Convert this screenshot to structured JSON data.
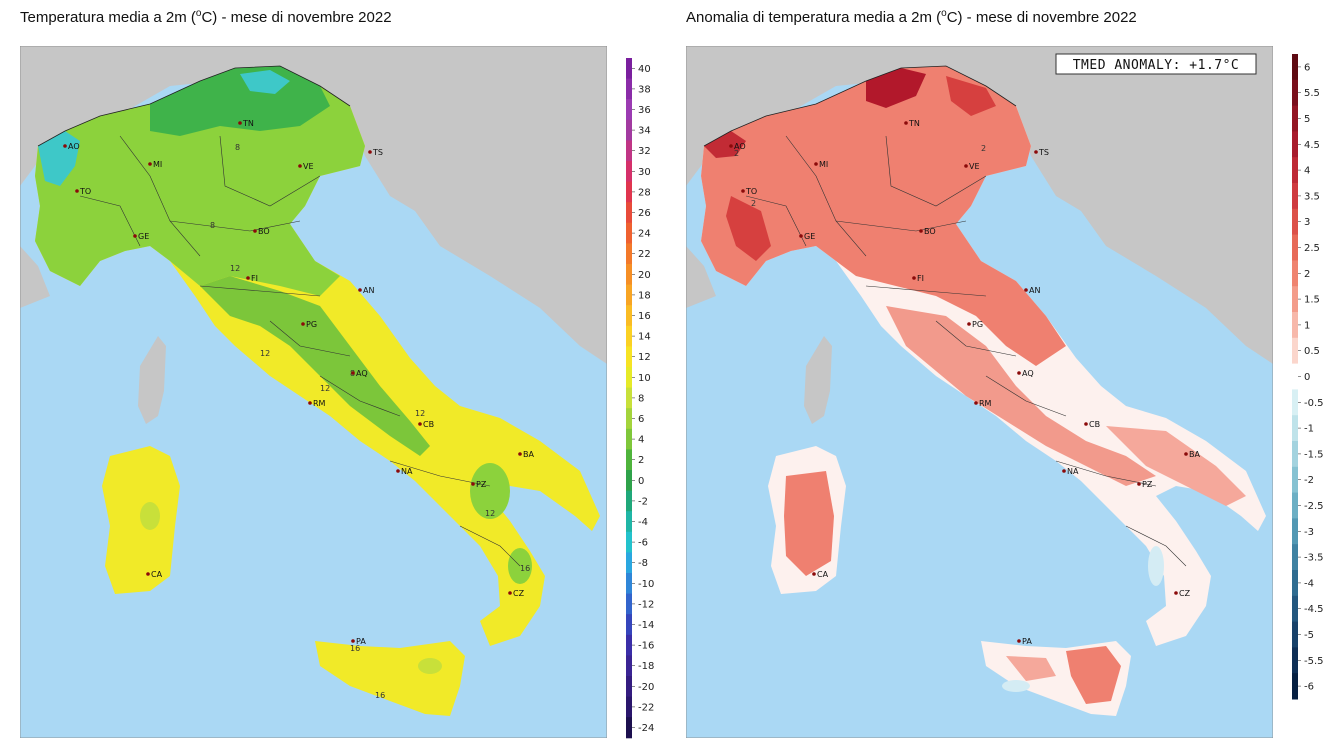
{
  "left_map": {
    "title": "Temperatura media a 2m (",
    "title_sup": "o",
    "title_rest": "C) - mese di novembre 2022",
    "colorbar_ticks": [
      "40",
      "38",
      "36",
      "34",
      "32",
      "30",
      "28",
      "26",
      "24",
      "22",
      "20",
      "18",
      "16",
      "14",
      "12",
      "10",
      "8",
      "6",
      "4",
      "2",
      "0",
      "-2",
      "-4",
      "-6",
      "-8",
      "-10",
      "-12",
      "-14",
      "-16",
      "-18",
      "-20",
      "-22",
      "-24"
    ],
    "isolines": [
      "8",
      "8",
      "12",
      "12",
      "12",
      "8",
      "12",
      "12",
      "16",
      "16",
      "16"
    ]
  },
  "right_map": {
    "title": "Anomalia di temperatura media a 2m (",
    "title_sup": "o",
    "title_rest": "C) - mese di novembre 2022",
    "anomaly_box": "TMED ANOMALY: +1.7°C",
    "colorbar_ticks": [
      "6",
      "5.5",
      "5",
      "4.5",
      "4",
      "3.5",
      "3",
      "2.5",
      "2",
      "1.5",
      "1",
      "0.5",
      "0",
      "-0.5",
      "-1",
      "-1.5",
      "-2",
      "-2.5",
      "-3",
      "-3.5",
      "-4",
      "-4.5",
      "-5",
      "-5.5",
      "-6"
    ],
    "isolines": [
      "2",
      "2",
      "2"
    ]
  },
  "cities": [
    "AO",
    "TN",
    "TS",
    "MI",
    "VE",
    "TO",
    "GE",
    "BO",
    "FI",
    "AN",
    "PG",
    "AQ",
    "RM",
    "CB",
    "BA",
    "NA",
    "PZ",
    "CZ",
    "CA",
    "PA"
  ],
  "colors": {
    "sea": "#aad8f4",
    "land_outside": "#c6c6c6",
    "temp_green": "#8cd23c",
    "temp_yellow": "#f1ea28",
    "anom_red": "#ef8070",
    "anom_white": "#fdf1ee"
  }
}
